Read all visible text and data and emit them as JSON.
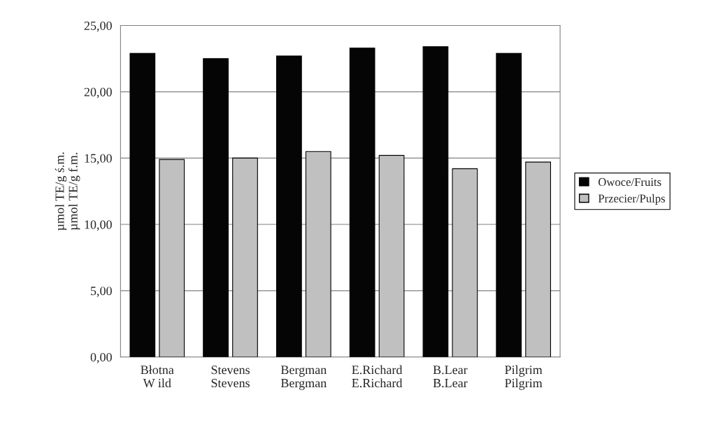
{
  "chart_data": {
    "type": "bar",
    "ylabel": "µmol TE/g ś.m.\nµmol TE/g f.m.",
    "categories": [
      "Błotna\nW ild",
      "Stevens\nStevens",
      "Bergman\nBergman",
      "E.Richard\nE.Richard",
      "B.Lear\nB.Lear",
      "Pilgrim\nPilgrim"
    ],
    "series": [
      {
        "name": "Owoce/Fruits",
        "color": "#050505",
        "values": [
          22.9,
          22.5,
          22.7,
          23.3,
          23.4,
          22.9
        ]
      },
      {
        "name": "Przecier/Pulps",
        "color": "#c0c0c0",
        "values": [
          14.9,
          15.0,
          15.5,
          15.2,
          14.2,
          14.7
        ]
      }
    ],
    "ylim": [
      0,
      25
    ],
    "yticks": [
      {
        "value": 0,
        "label": "0,00"
      },
      {
        "value": 5,
        "label": "5,00"
      },
      {
        "value": 10,
        "label": "10,00"
      },
      {
        "value": 15,
        "label": "15,00"
      },
      {
        "value": 20,
        "label": "20,00"
      },
      {
        "value": 25,
        "label": "25,00"
      }
    ],
    "grid": "y",
    "legend": "right"
  }
}
